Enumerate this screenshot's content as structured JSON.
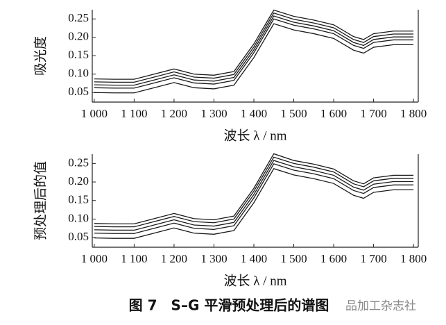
{
  "chart_data": [
    {
      "type": "line",
      "y_label": "吸光度",
      "x_label": "波长 λ / nm",
      "x": [
        1000,
        1050,
        1100,
        1150,
        1200,
        1250,
        1300,
        1350,
        1400,
        1450,
        1500,
        1550,
        1600,
        1650,
        1675,
        1700,
        1750,
        1800
      ],
      "series": [
        {
          "color": "#1a1a1a",
          "values": [
            0.087,
            0.086,
            0.086,
            0.1,
            0.114,
            0.1,
            0.097,
            0.107,
            0.182,
            0.274,
            0.257,
            0.247,
            0.234,
            0.202,
            0.194,
            0.21,
            0.217,
            0.217
          ]
        },
        {
          "color": "#1a1a1a",
          "values": [
            0.079,
            0.078,
            0.078,
            0.092,
            0.106,
            0.092,
            0.089,
            0.099,
            0.174,
            0.266,
            0.249,
            0.239,
            0.226,
            0.194,
            0.186,
            0.202,
            0.209,
            0.209
          ]
        },
        {
          "color": "#1a1a1a",
          "values": [
            0.071,
            0.07,
            0.07,
            0.084,
            0.098,
            0.084,
            0.081,
            0.091,
            0.166,
            0.258,
            0.241,
            0.231,
            0.218,
            0.186,
            0.178,
            0.194,
            0.201,
            0.201
          ]
        },
        {
          "color": "#1a1a1a",
          "values": [
            0.063,
            0.062,
            0.062,
            0.076,
            0.09,
            0.076,
            0.073,
            0.083,
            0.158,
            0.25,
            0.233,
            0.223,
            0.21,
            0.178,
            0.17,
            0.186,
            0.193,
            0.193
          ]
        },
        {
          "color": "#1a1a1a",
          "values": [
            0.05,
            0.049,
            0.049,
            0.063,
            0.077,
            0.063,
            0.06,
            0.07,
            0.145,
            0.237,
            0.22,
            0.21,
            0.197,
            0.165,
            0.157,
            0.173,
            0.18,
            0.18
          ]
        }
      ],
      "xlim": [
        995,
        1812
      ],
      "ylim": [
        0.024,
        0.275
      ],
      "xticks": [
        {
          "value": 1000,
          "label": "1 000"
        },
        {
          "value": 1100,
          "label": "1 100"
        },
        {
          "value": 1200,
          "label": "1 200"
        },
        {
          "value": 1300,
          "label": "1 300"
        },
        {
          "value": 1400,
          "label": "1 400"
        },
        {
          "value": 1500,
          "label": "1 500"
        },
        {
          "value": 1600,
          "label": "1 600"
        },
        {
          "value": 1700,
          "label": "1 700"
        },
        {
          "value": 1800,
          "label": "1 800"
        }
      ],
      "yticks": [
        0.05,
        {
          "value": 0.1,
          "label": "0.10"
        },
        0.15,
        {
          "value": 0.2,
          "label": "0.20"
        },
        0.25
      ]
    },
    {
      "type": "line",
      "y_label": "预处理后的值",
      "x_label": "波长 λ / nm",
      "x": [
        1000,
        1050,
        1100,
        1150,
        1200,
        1250,
        1300,
        1350,
        1400,
        1450,
        1500,
        1550,
        1600,
        1650,
        1675,
        1700,
        1750,
        1800
      ],
      "series": [
        {
          "color": "#1a1a1a",
          "values": [
            0.088,
            0.087,
            0.087,
            0.101,
            0.115,
            0.101,
            0.098,
            0.108,
            0.183,
            0.276,
            0.258,
            0.248,
            0.235,
            0.203,
            0.195,
            0.211,
            0.218,
            0.218
          ]
        },
        {
          "color": "#1a1a1a",
          "values": [
            0.08,
            0.079,
            0.079,
            0.093,
            0.107,
            0.093,
            0.09,
            0.1,
            0.175,
            0.267,
            0.25,
            0.24,
            0.227,
            0.195,
            0.187,
            0.203,
            0.21,
            0.21
          ]
        },
        {
          "color": "#1a1a1a",
          "values": [
            0.071,
            0.07,
            0.07,
            0.084,
            0.098,
            0.084,
            0.081,
            0.091,
            0.166,
            0.258,
            0.241,
            0.231,
            0.218,
            0.186,
            0.178,
            0.194,
            0.201,
            0.201
          ]
        },
        {
          "color": "#1a1a1a",
          "values": [
            0.062,
            0.061,
            0.061,
            0.075,
            0.089,
            0.075,
            0.072,
            0.082,
            0.157,
            0.249,
            0.232,
            0.222,
            0.209,
            0.177,
            0.169,
            0.185,
            0.192,
            0.192
          ]
        },
        {
          "color": "#1a1a1a",
          "values": [
            0.049,
            0.048,
            0.048,
            0.062,
            0.076,
            0.062,
            0.059,
            0.069,
            0.144,
            0.236,
            0.219,
            0.209,
            0.196,
            0.164,
            0.156,
            0.172,
            0.179,
            0.179
          ]
        }
      ],
      "xlim": [
        995,
        1812
      ],
      "ylim": [
        0.024,
        0.275
      ],
      "xticks": [
        {
          "value": 1000,
          "label": "1 000"
        },
        {
          "value": 1100,
          "label": "1 100"
        },
        {
          "value": 1200,
          "label": "1 200"
        },
        {
          "value": 1300,
          "label": "1 300"
        },
        {
          "value": 1400,
          "label": "1 400"
        },
        {
          "value": 1500,
          "label": "1 500"
        },
        {
          "value": 1600,
          "label": "1 600"
        },
        {
          "value": 1700,
          "label": "1 700"
        },
        {
          "value": 1800,
          "label": "1 800"
        }
      ],
      "yticks": [
        0.05,
        {
          "value": 0.1,
          "label": "0.10"
        },
        0.15,
        {
          "value": 0.2,
          "label": "0.20"
        },
        0.25
      ]
    }
  ],
  "caption": "图 7　S–G 平滑预处理后的谱图",
  "watermark": "品加工杂志社"
}
